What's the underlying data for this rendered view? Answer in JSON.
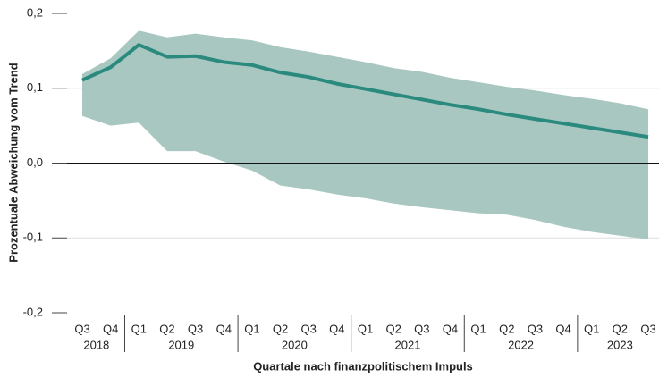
{
  "chart_data": {
    "type": "line_band",
    "y_label": "Prozentuale Abweichung vom Trend",
    "x_label": "Quartale nach finanzpolitischem Impuls",
    "category_groups": [
      {
        "label": "2018",
        "categories": [
          "Q3",
          "Q4"
        ]
      },
      {
        "label": "2019",
        "categories": [
          "Q1",
          "Q2",
          "Q3",
          "Q4"
        ]
      },
      {
        "label": "2020",
        "categories": [
          "Q1",
          "Q2",
          "Q3",
          "Q4"
        ]
      },
      {
        "label": "2021",
        "categories": [
          "Q1",
          "Q2",
          "Q3",
          "Q4"
        ]
      },
      {
        "label": "2022",
        "categories": [
          "Q1",
          "Q2",
          "Q3",
          "Q4"
        ]
      },
      {
        "label": "2023",
        "categories": [
          "Q1",
          "Q2",
          "Q3"
        ]
      }
    ],
    "series": [
      {
        "color": "#2a8a7e",
        "values": [
          0.111,
          0.128,
          0.158,
          0.142,
          0.143,
          0.135,
          0.131,
          0.121,
          0.115,
          0.106,
          0.099,
          0.092,
          0.085,
          0.078,
          0.072,
          0.065,
          0.059,
          0.053,
          0.047,
          0.041,
          0.035
        ],
        "band_color": "#a9c7c1",
        "upper": [
          0.119,
          0.14,
          0.177,
          0.168,
          0.173,
          0.168,
          0.164,
          0.155,
          0.149,
          0.142,
          0.135,
          0.127,
          0.122,
          0.114,
          0.108,
          0.102,
          0.097,
          0.091,
          0.086,
          0.08,
          0.072
        ],
        "lower": [
          0.063,
          0.05,
          0.054,
          0.016,
          0.016,
          0.002,
          -0.01,
          -0.03,
          -0.035,
          -0.042,
          -0.047,
          -0.054,
          -0.059,
          -0.063,
          -0.067,
          -0.069,
          -0.076,
          -0.085,
          -0.092,
          -0.097,
          -0.102
        ]
      }
    ],
    "ylim": [
      -0.2,
      0.2
    ],
    "yticks": [
      {
        "value": 0.2,
        "label": "0,2"
      },
      {
        "value": 0.1,
        "label": "0,1"
      },
      {
        "value": 0,
        "label": "0,0"
      },
      {
        "value": -0.1,
        "label": "-0,1"
      },
      {
        "value": -0.2,
        "label": "-0,2"
      }
    ],
    "grid": true
  }
}
